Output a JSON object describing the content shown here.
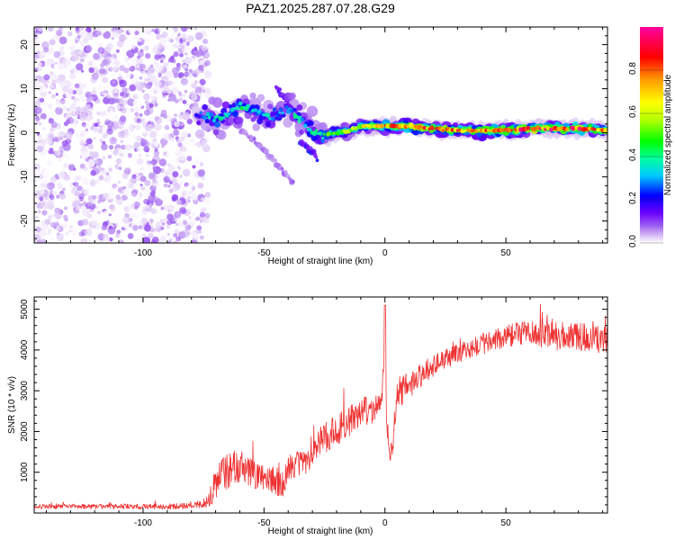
{
  "title": "PAZ1.2025.287.07.28.G29",
  "chart_data": [
    {
      "type": "heatmap",
      "xlabel": "Height of straight line (km)",
      "ylabel": "Frequency (Hz)",
      "xlim": [
        -145,
        92
      ],
      "ylim": [
        -25,
        24
      ],
      "xticks": [
        -100,
        -50,
        0,
        50
      ],
      "xtick_labels": [
        "-100",
        "-50",
        "0",
        "50"
      ],
      "yticks": [
        -20,
        -10,
        0,
        10,
        20
      ],
      "ytick_labels": [
        "-20",
        "-10",
        "0",
        "10",
        "20"
      ],
      "colorbar": {
        "label": "Normalized spectral amplitude",
        "range": [
          0.0,
          1.0
        ],
        "ticks": [
          0.0,
          0.2,
          0.4,
          0.6,
          0.8
        ],
        "tick_labels": [
          "0.0",
          "0.2",
          "0.4",
          "0.6",
          "0.8"
        ],
        "colormap": [
          "#ffffff",
          "#ddc6f5",
          "#9d60f0",
          "#6a00ff",
          "#0000ff",
          "#00c8ff",
          "#00ffa0",
          "#00ff00",
          "#b4ff00",
          "#ffff00",
          "#ff9600",
          "#ff0000",
          "#ff00a0"
        ]
      },
      "noise_region": {
        "x_range": [
          -145,
          -77
        ],
        "freq_range": [
          -25,
          24
        ],
        "amplitude_range": [
          0.0,
          0.2
        ]
      },
      "ridge": {
        "x": [
          -78,
          -72,
          -68,
          -64,
          -60,
          -56,
          -52,
          -48,
          -44,
          -40,
          -37,
          -34,
          -31,
          -28,
          -25,
          -20,
          -15,
          -10,
          -5,
          0,
          5,
          10,
          20,
          30,
          40,
          50,
          60,
          70,
          80,
          92
        ],
        "freq": [
          4.0,
          3.5,
          3.0,
          5.0,
          6.0,
          5.5,
          4.5,
          3.5,
          4.5,
          5.5,
          4.0,
          2.5,
          0.5,
          -0.5,
          -0.5,
          0.0,
          0.5,
          1.5,
          1.5,
          1.5,
          1.5,
          1.5,
          1.0,
          0.5,
          0.5,
          0.5,
          1.0,
          1.0,
          1.0,
          0.5
        ],
        "amplitude": [
          0.3,
          0.45,
          0.5,
          0.45,
          0.5,
          0.45,
          0.4,
          0.45,
          0.4,
          0.4,
          0.45,
          0.45,
          0.5,
          0.5,
          0.55,
          0.6,
          0.65,
          0.7,
          0.75,
          0.8,
          0.85,
          0.85,
          0.85,
          0.85,
          0.85,
          0.9,
          0.9,
          0.9,
          0.9,
          0.85
        ]
      },
      "side_branches": [
        {
          "x": [
            -62,
            -50,
            -38
          ],
          "freq": [
            2,
            -4,
            -11
          ],
          "amplitude": 0.15
        },
        {
          "x": [
            -45,
            -38,
            -33
          ],
          "freq": [
            10,
            6,
            2
          ],
          "amplitude": 0.25
        },
        {
          "x": [
            -35,
            -29,
            -28
          ],
          "freq": [
            -2,
            -5,
            -6
          ],
          "amplitude": 0.3
        }
      ]
    },
    {
      "type": "line",
      "xlabel": "Height of straight line (km)",
      "ylabel": "SNR (10 * v/v)",
      "xlim": [
        -145,
        92
      ],
      "ylim": [
        0,
        5300
      ],
      "xticks": [
        -100,
        -50,
        0,
        50
      ],
      "xtick_labels": [
        "-100",
        "-50",
        "0",
        "50"
      ],
      "yticks": [
        1000,
        2000,
        3000,
        4000,
        5000
      ],
      "ytick_labels": [
        "1000",
        "2000",
        "3000",
        "4000",
        "5000"
      ],
      "series": [
        {
          "name": "SNR",
          "color": "#ee3333",
          "x": [
            -145,
            -120,
            -100,
            -80,
            -75,
            -72,
            -70,
            -68,
            -65,
            -62,
            -60,
            -55,
            -50,
            -45,
            -42,
            -40,
            -38,
            -35,
            -32,
            -30,
            -25,
            -20,
            -15,
            -10,
            -5,
            -2,
            -1,
            0,
            1,
            2,
            3,
            5,
            10,
            20,
            30,
            40,
            50,
            60,
            70,
            80,
            92
          ],
          "values": [
            150,
            150,
            150,
            160,
            220,
            400,
            650,
            850,
            1000,
            1050,
            1100,
            950,
            800,
            750,
            700,
            1000,
            1150,
            1200,
            1300,
            1500,
            1800,
            2000,
            2200,
            2400,
            2500,
            2600,
            3000,
            4000,
            1700,
            1300,
            1600,
            2900,
            3100,
            3600,
            3900,
            4100,
            4300,
            4400,
            4300,
            4300,
            4200
          ],
          "noise_amplitude": [
            70,
            80,
            80,
            90,
            120,
            400,
            500,
            550,
            600,
            550,
            500,
            450,
            400,
            450,
            400,
            450,
            450,
            400,
            500,
            500,
            500,
            500,
            500,
            500,
            500,
            300,
            400,
            600,
            300,
            300,
            400,
            500,
            400,
            350,
            300,
            350,
            350,
            400,
            450,
            450,
            400
          ]
        }
      ]
    }
  ]
}
